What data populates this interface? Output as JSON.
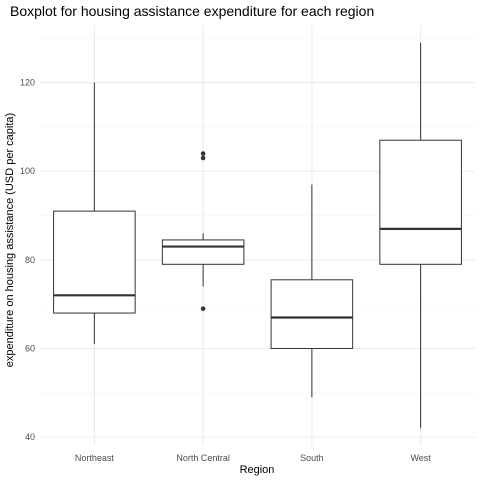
{
  "chart_data": {
    "type": "boxplot",
    "title": "Boxplot for housing assistance expenditure for each region",
    "xlabel": "Region",
    "ylabel": "expenditure on housing assistance (USD per capita)",
    "ylim": [
      38,
      133
    ],
    "yticks": [
      40,
      60,
      80,
      100,
      120
    ],
    "grid": true,
    "categories": [
      "Northeast",
      "North Central",
      "South",
      "West"
    ],
    "boxes": [
      {
        "category": "Northeast",
        "whisker_low": 61,
        "q1": 68,
        "median": 72,
        "q3": 91,
        "whisker_high": 120,
        "outliers": []
      },
      {
        "category": "North Central",
        "whisker_low": 74,
        "q1": 79,
        "median": 83,
        "q3": 84.5,
        "whisker_high": 86,
        "outliers": [
          104,
          103,
          69
        ]
      },
      {
        "category": "South",
        "whisker_low": 49,
        "q1": 60,
        "median": 67,
        "q3": 75.5,
        "whisker_high": 97,
        "outliers": []
      },
      {
        "category": "West",
        "whisker_low": 42,
        "q1": 79,
        "median": 87,
        "q3": 107,
        "whisker_high": 129,
        "outliers": []
      }
    ],
    "colors": {
      "box_fill": "#ffffff",
      "box_stroke": "#333333",
      "grid_major": "#ebebeb",
      "grid_minor": "#f5f5f5"
    }
  }
}
